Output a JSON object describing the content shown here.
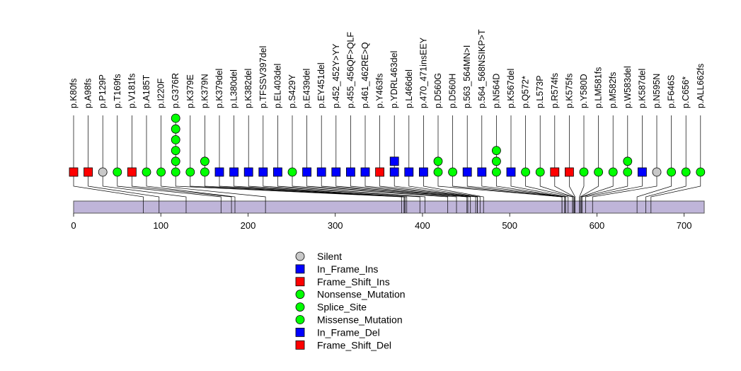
{
  "chart_data": {
    "type": "lollipop",
    "protein_length": 723,
    "xlim": [
      0,
      723
    ],
    "xticks": [
      0,
      100,
      200,
      300,
      400,
      500,
      600,
      700
    ],
    "colors": {
      "silent": "#c8c8c8",
      "in_frame": "#0000ff",
      "frame_shift": "#ff0000",
      "nonsense_splice_missense": "#00ff00",
      "domain": "#bfb5d9"
    },
    "mutations": [
      {
        "label": "p.K80fs",
        "pos": 80,
        "markers": [
          "frame_shift"
        ]
      },
      {
        "label": "p.A98fs",
        "pos": 98,
        "markers": [
          "frame_shift"
        ]
      },
      {
        "label": "p.P129P",
        "pos": 129,
        "markers": [
          "silent"
        ]
      },
      {
        "label": "p.T169fs",
        "pos": 169,
        "markers": [
          "nonsense_splice_missense"
        ]
      },
      {
        "label": "p.V181fs",
        "pos": 181,
        "markers": [
          "frame_shift"
        ]
      },
      {
        "label": "p.A185T",
        "pos": 185,
        "markers": [
          "nonsense_splice_missense"
        ]
      },
      {
        "label": "p.I220F",
        "pos": 220,
        "markers": [
          "nonsense_splice_missense"
        ]
      },
      {
        "label": "p.G376R",
        "pos": 376,
        "markers": [
          "nonsense_splice_missense",
          "nonsense_splice_missense",
          "nonsense_splice_missense",
          "nonsense_splice_missense",
          "nonsense_splice_missense",
          "nonsense_splice_missense"
        ]
      },
      {
        "label": "p.K379E",
        "pos": 379,
        "markers": [
          "nonsense_splice_missense"
        ]
      },
      {
        "label": "p.K379N",
        "pos": 379,
        "markers": [
          "nonsense_splice_missense",
          "nonsense_splice_missense"
        ]
      },
      {
        "label": "p.K379del",
        "pos": 379,
        "markers": [
          "in_frame"
        ]
      },
      {
        "label": "p.L380del",
        "pos": 380,
        "markers": [
          "in_frame"
        ]
      },
      {
        "label": "p.K382del",
        "pos": 382,
        "markers": [
          "in_frame"
        ]
      },
      {
        "label": "p.TFSSV397del",
        "pos": 397,
        "markers": [
          "in_frame"
        ]
      },
      {
        "label": "p.EL403del",
        "pos": 403,
        "markers": [
          "in_frame"
        ]
      },
      {
        "label": "p.S429Y",
        "pos": 429,
        "markers": [
          "nonsense_splice_missense"
        ]
      },
      {
        "label": "p.E439del",
        "pos": 439,
        "markers": [
          "in_frame"
        ]
      },
      {
        "label": "p.EY451del",
        "pos": 451,
        "markers": [
          "in_frame"
        ]
      },
      {
        "label": "p.452_452Y>YY",
        "pos": 452,
        "markers": [
          "in_frame"
        ]
      },
      {
        "label": "p.455_456QF>QLF",
        "pos": 455,
        "markers": [
          "in_frame"
        ]
      },
      {
        "label": "p.461_462RE>Q",
        "pos": 461,
        "markers": [
          "in_frame"
        ]
      },
      {
        "label": "p.Y463fs",
        "pos": 463,
        "markers": [
          "frame_shift"
        ]
      },
      {
        "label": "p.YDRL463del",
        "pos": 463,
        "markers": [
          "in_frame",
          "in_frame"
        ]
      },
      {
        "label": "p.L466del",
        "pos": 466,
        "markers": [
          "in_frame"
        ]
      },
      {
        "label": "p.470_471insEEY",
        "pos": 470,
        "markers": [
          "in_frame"
        ]
      },
      {
        "label": "p.D560G",
        "pos": 560,
        "markers": [
          "nonsense_splice_missense",
          "nonsense_splice_missense"
        ]
      },
      {
        "label": "p.D560H",
        "pos": 560,
        "markers": [
          "nonsense_splice_missense"
        ]
      },
      {
        "label": "p.563_564MN>I",
        "pos": 563,
        "markers": [
          "in_frame"
        ]
      },
      {
        "label": "p.564_568NSIKP>T",
        "pos": 564,
        "markers": [
          "in_frame"
        ]
      },
      {
        "label": "p.N564D",
        "pos": 564,
        "markers": [
          "nonsense_splice_missense",
          "nonsense_splice_missense",
          "nonsense_splice_missense"
        ]
      },
      {
        "label": "p.K567del",
        "pos": 567,
        "markers": [
          "in_frame"
        ]
      },
      {
        "label": "p.Q572*",
        "pos": 572,
        "markers": [
          "nonsense_splice_missense"
        ]
      },
      {
        "label": "p.L573P",
        "pos": 573,
        "markers": [
          "nonsense_splice_missense"
        ]
      },
      {
        "label": "p.R574fs",
        "pos": 574,
        "markers": [
          "frame_shift"
        ]
      },
      {
        "label": "p.K575fs",
        "pos": 575,
        "markers": [
          "frame_shift"
        ]
      },
      {
        "label": "p.Y580D",
        "pos": 580,
        "markers": [
          "nonsense_splice_missense"
        ]
      },
      {
        "label": "p.LM581fs",
        "pos": 581,
        "markers": [
          "nonsense_splice_missense"
        ]
      },
      {
        "label": "p.M582fs",
        "pos": 582,
        "markers": [
          "nonsense_splice_missense"
        ]
      },
      {
        "label": "p.W583del",
        "pos": 583,
        "markers": [
          "nonsense_splice_missense",
          "nonsense_splice_missense"
        ]
      },
      {
        "label": "p.K587del",
        "pos": 587,
        "markers": [
          "in_frame"
        ]
      },
      {
        "label": "p.N595N",
        "pos": 595,
        "markers": [
          "silent"
        ]
      },
      {
        "label": "p.F646S",
        "pos": 646,
        "markers": [
          "nonsense_splice_missense"
        ]
      },
      {
        "label": "p.C656*",
        "pos": 656,
        "markers": [
          "nonsense_splice_missense"
        ]
      },
      {
        "label": "p.ALL662fs",
        "pos": 662,
        "markers": [
          "nonsense_splice_missense"
        ]
      }
    ],
    "legend": [
      {
        "label": "Silent",
        "shape": "circle",
        "color": "#c8c8c8"
      },
      {
        "label": "In_Frame_Ins",
        "shape": "square",
        "color": "#0000ff"
      },
      {
        "label": "Frame_Shift_Ins",
        "shape": "square",
        "color": "#ff0000"
      },
      {
        "label": "Nonsense_Mutation",
        "shape": "circle",
        "color": "#00ff00"
      },
      {
        "label": "Splice_Site",
        "shape": "circle",
        "color": "#00ff00"
      },
      {
        "label": "Missense_Mutation",
        "shape": "circle",
        "color": "#00ff00"
      },
      {
        "label": "In_Frame_Del",
        "shape": "square",
        "color": "#0000ff"
      },
      {
        "label": "Frame_Shift_Del",
        "shape": "square",
        "color": "#ff0000"
      }
    ]
  }
}
